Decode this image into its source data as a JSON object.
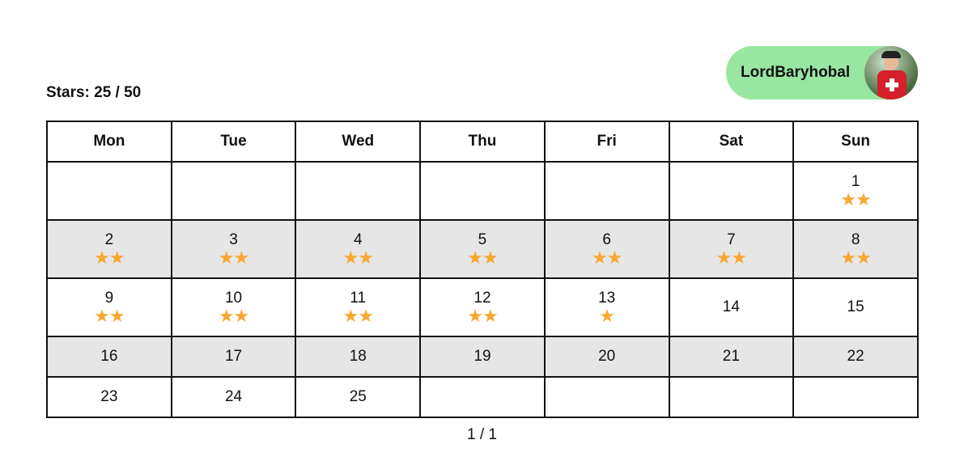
{
  "stars_summary": "Stars: 25 / 50",
  "user": {
    "name": "LordBaryhobal",
    "avatar": "avatar-photo"
  },
  "accent_colors": {
    "user_pill": "#98e6a0",
    "star": "#f9a730",
    "alt_row": "#e6e6e6"
  },
  "calendar": {
    "headers": [
      "Mon",
      "Tue",
      "Wed",
      "Thu",
      "Fri",
      "Sat",
      "Sun"
    ],
    "weeks": [
      [
        null,
        null,
        null,
        null,
        null,
        null,
        {
          "day": "1",
          "stars": 2
        }
      ],
      [
        {
          "day": "2",
          "stars": 2
        },
        {
          "day": "3",
          "stars": 2
        },
        {
          "day": "4",
          "stars": 2
        },
        {
          "day": "5",
          "stars": 2
        },
        {
          "day": "6",
          "stars": 2
        },
        {
          "day": "7",
          "stars": 2
        },
        {
          "day": "8",
          "stars": 2
        }
      ],
      [
        {
          "day": "9",
          "stars": 2
        },
        {
          "day": "10",
          "stars": 2
        },
        {
          "day": "11",
          "stars": 2
        },
        {
          "day": "12",
          "stars": 2
        },
        {
          "day": "13",
          "stars": 1
        },
        {
          "day": "14",
          "stars": 0
        },
        {
          "day": "15",
          "stars": 0
        }
      ],
      [
        {
          "day": "16",
          "stars": 0
        },
        {
          "day": "17",
          "stars": 0
        },
        {
          "day": "18",
          "stars": 0
        },
        {
          "day": "19",
          "stars": 0
        },
        {
          "day": "20",
          "stars": 0
        },
        {
          "day": "21",
          "stars": 0
        },
        {
          "day": "22",
          "stars": 0
        }
      ],
      [
        {
          "day": "23",
          "stars": 0
        },
        {
          "day": "24",
          "stars": 0
        },
        {
          "day": "25",
          "stars": 0
        },
        null,
        null,
        null,
        null
      ]
    ]
  },
  "pagination": "1 / 1"
}
